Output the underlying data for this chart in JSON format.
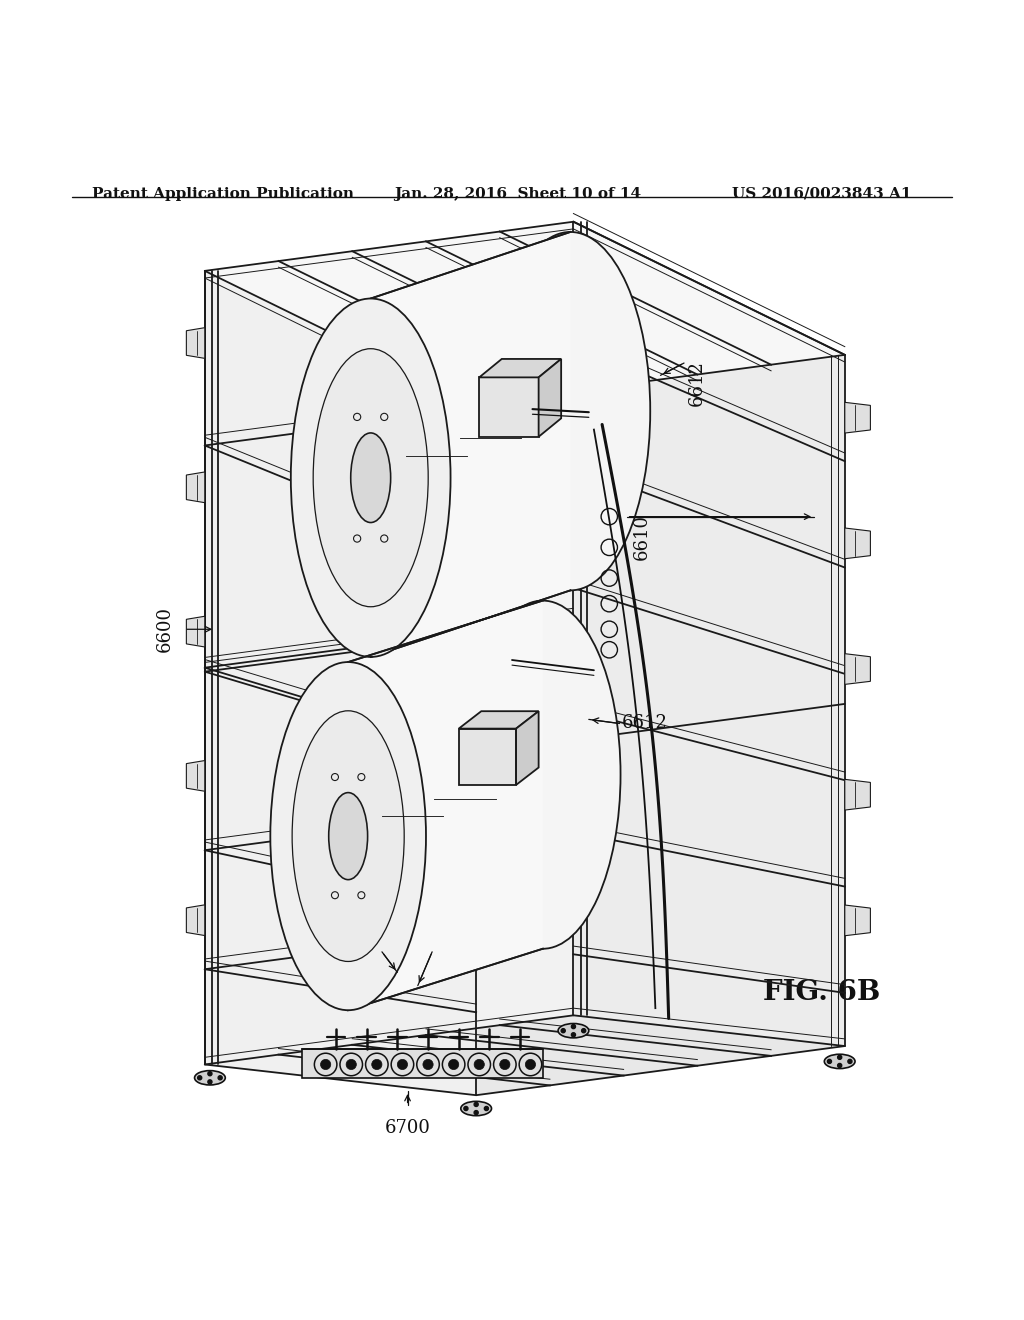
{
  "background_color": "#ffffff",
  "header_left": "Patent Application Publication",
  "header_center": "Jan. 28, 2016  Sheet 10 of 14",
  "header_right": "US 2016/0023843 A1",
  "fig_label": "FIG. 6B",
  "header_fontsize": 11,
  "label_fontsize": 13,
  "fig_label_fontsize": 20
}
